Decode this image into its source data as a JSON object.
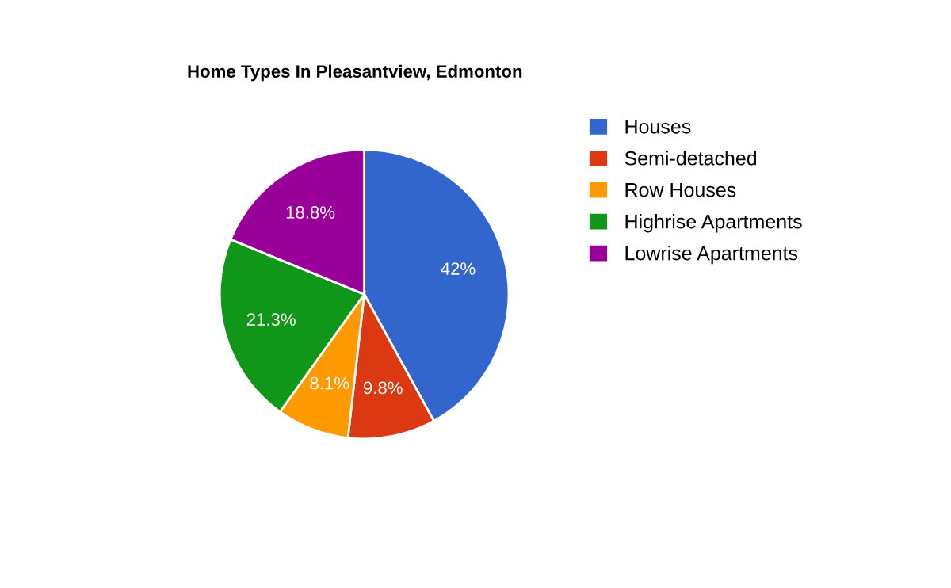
{
  "chart_data": {
    "type": "pie",
    "title": "Home Types In Pleasantview, Edmonton",
    "categories": [
      "Houses",
      "Semi-detached",
      "Row Houses",
      "Highrise Apartments",
      "Lowrise Apartments"
    ],
    "values": [
      42,
      9.8,
      8.1,
      21.3,
      18.8
    ],
    "colors": [
      "#3366cc",
      "#dc3912",
      "#ff9900",
      "#109618",
      "#990099"
    ],
    "value_labels": [
      "42%",
      "9.8%",
      "8.1%",
      "21.3%",
      "18.8%"
    ],
    "legend": "right"
  }
}
